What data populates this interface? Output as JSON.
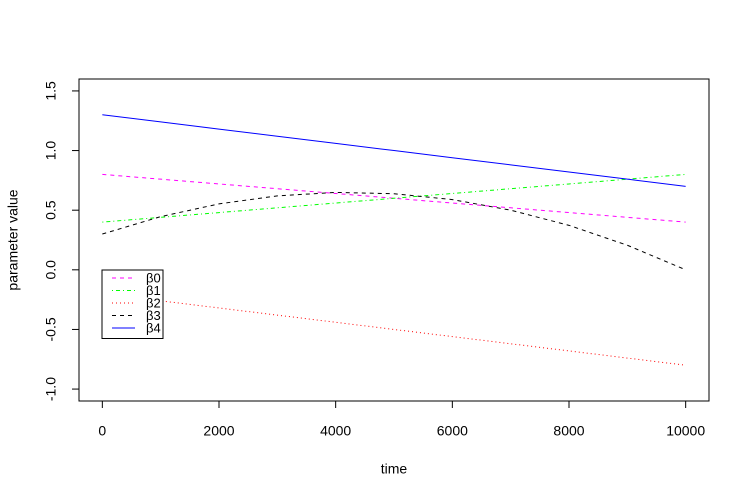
{
  "chart_data": {
    "type": "line",
    "xlabel": "time",
    "ylabel": "parameter value",
    "x": [
      0,
      1000,
      2000,
      3000,
      4000,
      5000,
      6000,
      7000,
      8000,
      9000,
      10000
    ],
    "series": [
      {
        "name": "β0",
        "color": "#ff00ff",
        "linestyle": "dashed",
        "values": [
          0.8,
          0.76,
          0.72,
          0.68,
          0.64,
          0.6,
          0.56,
          0.52,
          0.48,
          0.44,
          0.4
        ]
      },
      {
        "name": "β1",
        "color": "#00ff00",
        "linestyle": "dotdash",
        "values": [
          0.4,
          0.44,
          0.48,
          0.52,
          0.56,
          0.6,
          0.64,
          0.68,
          0.72,
          0.76,
          0.8
        ]
      },
      {
        "name": "β2",
        "color": "#ff0000",
        "linestyle": "dotted",
        "values": [
          -0.2,
          -0.26,
          -0.32,
          -0.38,
          -0.44,
          -0.5,
          -0.56,
          -0.62,
          -0.68,
          -0.74,
          -0.8
        ]
      },
      {
        "name": "β3",
        "color": "#000000",
        "linestyle": "dashed",
        "values": [
          0.3,
          0.446,
          0.553,
          0.62,
          0.649,
          0.638,
          0.589,
          0.5,
          0.373,
          0.206,
          0.0
        ]
      },
      {
        "name": "β4",
        "color": "#0000ff",
        "linestyle": "solid",
        "values": [
          1.3,
          1.24,
          1.18,
          1.12,
          1.06,
          1.0,
          0.94,
          0.88,
          0.82,
          0.76,
          0.7
        ]
      }
    ],
    "xlim": [
      -400,
      10400
    ],
    "xticks": [
      0,
      2000,
      4000,
      6000,
      8000,
      10000
    ],
    "ylim": [
      -1.1,
      1.6
    ],
    "yticks": [
      {
        "value": -1.0,
        "label": "-1.0"
      },
      {
        "value": -0.5,
        "label": "-0.5"
      },
      {
        "value": 0.0,
        "label": "0.0"
      },
      {
        "value": 0.5,
        "label": "0.5"
      },
      {
        "value": 1.0,
        "label": "1.0"
      },
      {
        "value": 1.5,
        "label": "1.5"
      }
    ],
    "legend_position": "left"
  }
}
